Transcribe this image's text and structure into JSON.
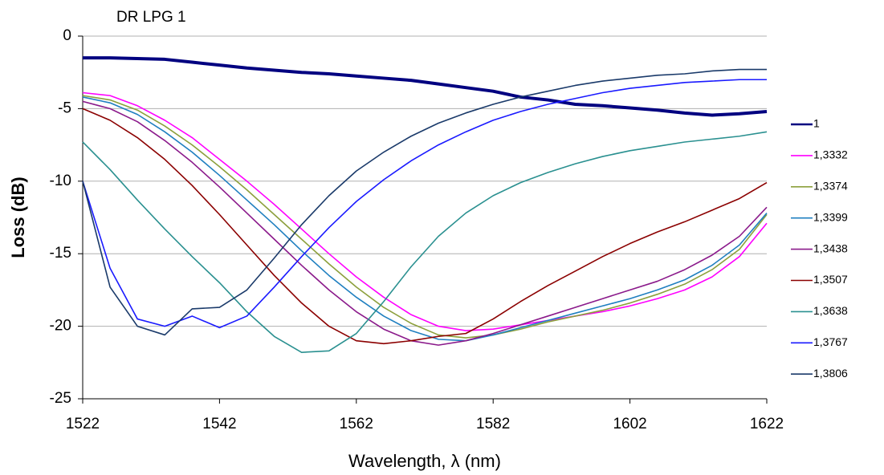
{
  "chart_data": {
    "type": "line",
    "title": "DR LPG 1",
    "x_label": "Wavelength, λ (nm)",
    "y_label": "Loss (dB)",
    "x": [
      1522,
      1526,
      1530,
      1534,
      1538,
      1542,
      1546,
      1550,
      1554,
      1558,
      1562,
      1566,
      1570,
      1574,
      1578,
      1582,
      1586,
      1590,
      1594,
      1598,
      1602,
      1606,
      1610,
      1614,
      1618,
      1622
    ],
    "series": [
      {
        "name": "1",
        "color": "#000080",
        "line_width": 4,
        "values": [
          -1.5,
          -1.5,
          -1.55,
          -1.6,
          -1.8,
          -2.0,
          -2.2,
          -2.35,
          -2.5,
          -2.6,
          -2.75,
          -2.9,
          -3.05,
          -3.3,
          -3.55,
          -3.8,
          -4.2,
          -4.4,
          -4.7,
          -4.8,
          -4.95,
          -5.1,
          -5.3,
          -5.45,
          -5.35,
          -5.2
        ]
      },
      {
        "name": "1,3332",
        "color": "#ff00ff",
        "line_width": 1.6,
        "values": [
          -3.9,
          -4.1,
          -4.8,
          -5.8,
          -7.0,
          -8.5,
          -10.0,
          -11.6,
          -13.3,
          -15.0,
          -16.6,
          -18.0,
          -19.2,
          -20.0,
          -20.3,
          -20.2,
          -19.9,
          -19.6,
          -19.3,
          -19.0,
          -18.6,
          -18.1,
          -17.5,
          -16.6,
          -15.2,
          -12.9
        ]
      },
      {
        "name": "1,3374",
        "color": "#8ca03c",
        "line_width": 1.6,
        "values": [
          -4.1,
          -4.4,
          -5.1,
          -6.2,
          -7.5,
          -9.0,
          -10.6,
          -12.3,
          -14.0,
          -15.7,
          -17.3,
          -18.7,
          -19.8,
          -20.6,
          -20.8,
          -20.6,
          -20.2,
          -19.7,
          -19.3,
          -18.9,
          -18.4,
          -17.8,
          -17.1,
          -16.1,
          -14.7,
          -12.3
        ]
      },
      {
        "name": "1,3399",
        "color": "#1f7fc0",
        "line_width": 1.6,
        "values": [
          -4.2,
          -4.6,
          -5.4,
          -6.6,
          -8.0,
          -9.6,
          -11.3,
          -13.0,
          -14.8,
          -16.5,
          -18.0,
          -19.3,
          -20.3,
          -20.9,
          -21.0,
          -20.6,
          -20.1,
          -19.6,
          -19.1,
          -18.6,
          -18.1,
          -17.5,
          -16.8,
          -15.8,
          -14.4,
          -12.2
        ]
      },
      {
        "name": "1,3438",
        "color": "#8b1a8b",
        "line_width": 1.6,
        "values": [
          -4.5,
          -5.0,
          -5.9,
          -7.2,
          -8.7,
          -10.4,
          -12.2,
          -14.0,
          -15.8,
          -17.5,
          -19.0,
          -20.2,
          -21.0,
          -21.3,
          -21.0,
          -20.5,
          -19.9,
          -19.3,
          -18.7,
          -18.1,
          -17.5,
          -16.9,
          -16.1,
          -15.1,
          -13.8,
          -11.8
        ]
      },
      {
        "name": "1,3507",
        "color": "#8b0000",
        "line_width": 1.6,
        "values": [
          -5.0,
          -5.8,
          -7.0,
          -8.5,
          -10.3,
          -12.3,
          -14.4,
          -16.5,
          -18.4,
          -20.0,
          -21.0,
          -21.2,
          -21.0,
          -20.7,
          -20.5,
          -19.5,
          -18.3,
          -17.2,
          -16.2,
          -15.2,
          -14.3,
          -13.5,
          -12.8,
          -12.0,
          -11.2,
          -10.1
        ]
      },
      {
        "name": "1,3638",
        "color": "#2a9090",
        "line_width": 1.6,
        "values": [
          -7.3,
          -9.2,
          -11.3,
          -13.3,
          -15.2,
          -17.0,
          -19.0,
          -20.7,
          -21.8,
          -21.7,
          -20.5,
          -18.3,
          -15.9,
          -13.8,
          -12.2,
          -11.0,
          -10.1,
          -9.4,
          -8.8,
          -8.3,
          -7.9,
          -7.6,
          -7.3,
          -7.1,
          -6.9,
          -6.6
        ]
      },
      {
        "name": "1,3767",
        "color": "#1a1aff",
        "line_width": 1.6,
        "values": [
          -10.0,
          -16.0,
          -19.5,
          -20.0,
          -19.3,
          -20.1,
          -19.3,
          -17.3,
          -15.2,
          -13.2,
          -11.4,
          -9.9,
          -8.6,
          -7.5,
          -6.6,
          -5.8,
          -5.2,
          -4.7,
          -4.3,
          -3.9,
          -3.6,
          -3.4,
          -3.2,
          -3.1,
          -3.0,
          -3.0
        ]
      },
      {
        "name": "1,3806",
        "color": "#1a3a6a",
        "line_width": 1.6,
        "values": [
          -10.0,
          -17.3,
          -20.0,
          -20.6,
          -18.8,
          -18.7,
          -17.5,
          -15.3,
          -13.0,
          -11.0,
          -9.3,
          -8.0,
          -6.9,
          -6.0,
          -5.3,
          -4.7,
          -4.2,
          -3.8,
          -3.4,
          -3.1,
          -2.9,
          -2.7,
          -2.6,
          -2.4,
          -2.3,
          -2.3
        ]
      }
    ],
    "xlim": [
      1522,
      1622
    ],
    "xticks": [
      1522,
      1542,
      1562,
      1582,
      1602,
      1622
    ],
    "ylim": [
      -25,
      0
    ],
    "yticks": [
      -25,
      -20,
      -15,
      -10,
      -5,
      0
    ],
    "grid": true,
    "legend": "right"
  }
}
